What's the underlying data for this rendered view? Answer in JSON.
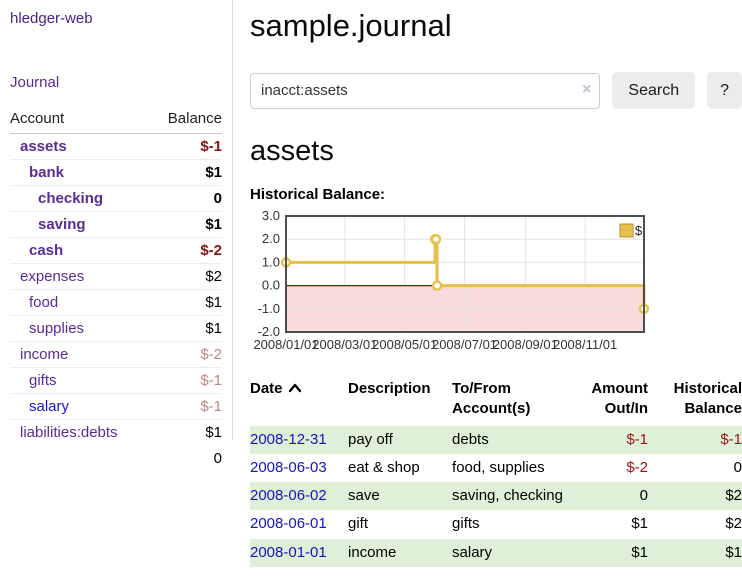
{
  "sidebar": {
    "brand": "hledger-web",
    "nav": {
      "journal": "Journal"
    },
    "accounts_table": {
      "headers": {
        "account": "Account",
        "balance": "Balance"
      },
      "rows": [
        {
          "name": "assets",
          "indent": 1,
          "bold": true,
          "balance": "$-1",
          "balance_style": "neg-strong"
        },
        {
          "name": "bank",
          "indent": 2,
          "bold": true,
          "balance": "$1",
          "balance_style": "pos"
        },
        {
          "name": "checking",
          "indent": 3,
          "bold": true,
          "balance": "0",
          "balance_style": "pos"
        },
        {
          "name": "saving",
          "indent": 3,
          "bold": true,
          "balance": "$1",
          "balance_style": "pos"
        },
        {
          "name": "cash",
          "indent": 2,
          "bold": true,
          "balance": "$-2",
          "balance_style": "neg-strong"
        },
        {
          "name": "expenses",
          "indent": 1,
          "bold": false,
          "balance": "$2",
          "balance_style": "pos"
        },
        {
          "name": "food",
          "indent": 2,
          "bold": false,
          "balance": "$1",
          "balance_style": "pos"
        },
        {
          "name": "supplies",
          "indent": 2,
          "bold": false,
          "balance": "$1",
          "balance_style": "pos"
        },
        {
          "name": "income",
          "indent": 1,
          "bold": false,
          "balance": "$-2",
          "balance_style": "neg-soft"
        },
        {
          "name": "gifts",
          "indent": 2,
          "bold": false,
          "balance": "$-1",
          "balance_style": "neg-soft"
        },
        {
          "name": "salary",
          "indent": 2,
          "bold": false,
          "balance": "$-1",
          "balance_style": "neg-soft",
          "link_style": "blue"
        },
        {
          "name": "liabilities:debts",
          "indent": 1,
          "bold": false,
          "balance": "$1",
          "balance_style": "pos"
        }
      ],
      "total": "0"
    }
  },
  "header": {
    "title": "sample.journal"
  },
  "search": {
    "query": "inacct:assets",
    "clear_icon": "×",
    "search_button": "Search",
    "help_button": "?"
  },
  "account_page": {
    "heading": "assets",
    "chart_label": "Historical Balance:"
  },
  "chart_data": {
    "type": "line",
    "step": true,
    "title": "Historical Balance",
    "legend": [
      {
        "label": "$",
        "color": "#e6c04a"
      }
    ],
    "legend_position": "top-right",
    "x_range": [
      "2008-01-01",
      "2008-12-31"
    ],
    "ylim": [
      -2,
      3
    ],
    "yticks": [
      "3.0",
      "2.0",
      "1.0",
      "0.0",
      "-1.0",
      "-2.0"
    ],
    "xticks": [
      {
        "date": "2008-01-01",
        "label": "2008/01/01"
      },
      {
        "date": "2008-03-01",
        "label": "2008/03/01"
      },
      {
        "date": "2008-05-01",
        "label": "2008/05/01"
      },
      {
        "date": "2008-07-01",
        "label": "2008/07/01"
      },
      {
        "date": "2008-09-01",
        "label": "2008/09/01"
      },
      {
        "date": "2008-11-01",
        "label": "2008/11/01"
      }
    ],
    "series": [
      {
        "name": "$",
        "color": "#e6c04a",
        "points": [
          [
            "2008-01-01",
            1
          ],
          [
            "2008-06-01",
            2
          ],
          [
            "2008-06-02",
            2
          ],
          [
            "2008-06-03",
            0
          ],
          [
            "2008-12-31",
            -1
          ]
        ]
      }
    ],
    "grid": true,
    "gridline_color": "#e4e4e4",
    "border_color": "#4d4d4d",
    "negative_region_color": "#f9dbdb",
    "zero_line_color": "#990000",
    "marker_fill": "#ffffff"
  },
  "register": {
    "headers": {
      "date": "Date",
      "description": "Description",
      "account": "To/From Account(s)",
      "amount": "Amount Out/In",
      "balance": "Historical Balance"
    },
    "rows": [
      {
        "date": "2008-12-31",
        "description": "pay off",
        "accounts": "debts",
        "amount": "$-1",
        "amount_neg": true,
        "balance": "$-1",
        "balance_neg": true,
        "highlight": true
      },
      {
        "date": "2008-06-03",
        "description": "eat & shop",
        "accounts": "food, supplies",
        "amount": "$-2",
        "amount_neg": true,
        "balance": "0",
        "balance_neg": false,
        "highlight": false
      },
      {
        "date": "2008-06-02",
        "description": "save",
        "accounts": "saving, checking",
        "amount": "0",
        "amount_neg": false,
        "balance": "$2",
        "balance_neg": false,
        "highlight": true
      },
      {
        "date": "2008-06-01",
        "description": "gift",
        "accounts": "gifts",
        "amount": "$1",
        "amount_neg": false,
        "balance": "$2",
        "balance_neg": false,
        "highlight": false
      },
      {
        "date": "2008-01-01",
        "description": "income",
        "accounts": "salary",
        "amount": "$1",
        "amount_neg": false,
        "balance": "$1",
        "balance_neg": false,
        "highlight": true
      }
    ]
  },
  "colors": {
    "link_purple": "#5b2c98",
    "link_blue": "#1513c4",
    "negative_strong": "#8b1313",
    "negative_soft": "#c48484",
    "row_highlight_green": "#dff0d8",
    "chart_gold": "#e6c04a",
    "chart_pink": "#f9dbdb",
    "zero_line_red": "#990000"
  }
}
